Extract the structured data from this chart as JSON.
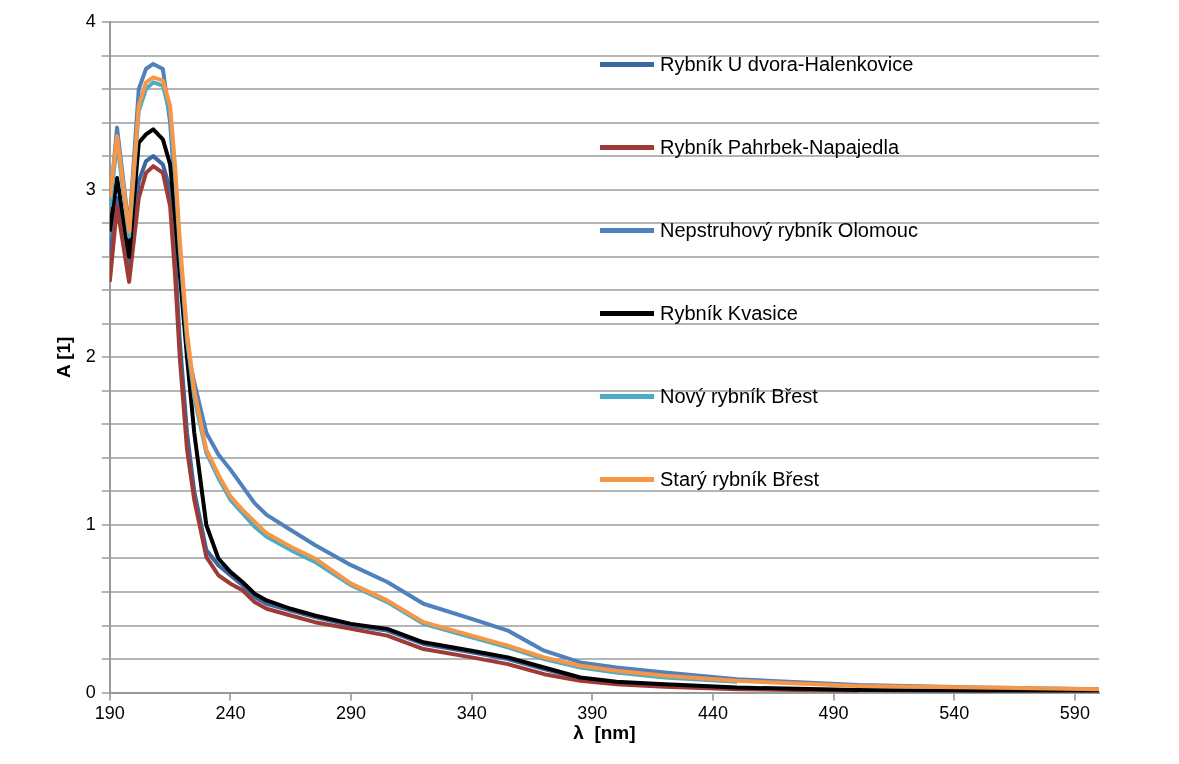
{
  "chart_data": {
    "type": "line",
    "xlabel": "λ  [nm]",
    "ylabel": "A [1]",
    "x": [
      190,
      193,
      198,
      202,
      205,
      208,
      212,
      215,
      217,
      219,
      222,
      225,
      230,
      235,
      240,
      245,
      250,
      255,
      265,
      275,
      290,
      305,
      320,
      340,
      355,
      370,
      385,
      400,
      420,
      450,
      500,
      550,
      600
    ],
    "xlim": [
      190,
      600
    ],
    "xticks": [
      190,
      240,
      290,
      340,
      390,
      440,
      490,
      540,
      590
    ],
    "ylim": [
      0,
      4
    ],
    "yticks": [
      0,
      {
        "value": 0.2,
        "label": null
      },
      {
        "value": 0.4,
        "label": null
      },
      {
        "value": 0.6,
        "label": null
      },
      {
        "value": 0.8,
        "label": null
      },
      1,
      {
        "value": 1.2,
        "label": null
      },
      {
        "value": 1.4,
        "label": null
      },
      {
        "value": 1.6,
        "label": null
      },
      {
        "value": 1.8,
        "label": null
      },
      2,
      {
        "value": 2.2,
        "label": null
      },
      {
        "value": 2.4,
        "label": null
      },
      {
        "value": 2.6,
        "label": null
      },
      {
        "value": 2.8,
        "label": null
      },
      3,
      {
        "value": 3.2,
        "label": null
      },
      {
        "value": 3.4,
        "label": null
      },
      {
        "value": 3.6,
        "label": null
      },
      {
        "value": 3.8,
        "label": null
      },
      4
    ],
    "grid": "y",
    "legend": "top right",
    "marker": "none",
    "line_style": "solid",
    "series": [
      {
        "name": "Rybník U dvora-Halenkovice",
        "color": "#3a67a0",
        "values": [
          2.6,
          2.95,
          2.55,
          3.05,
          3.17,
          3.2,
          3.15,
          3.0,
          2.6,
          2.1,
          1.55,
          1.2,
          0.85,
          0.76,
          0.7,
          0.64,
          0.57,
          0.53,
          0.49,
          0.45,
          0.4,
          0.37,
          0.29,
          0.24,
          0.2,
          0.14,
          0.085,
          0.06,
          null,
          null,
          null,
          null,
          null
        ]
      },
      {
        "name": "Rybník Pahrbek-Napajedla",
        "color": "#9e3b37",
        "values": [
          2.45,
          2.9,
          2.45,
          2.95,
          3.1,
          3.14,
          3.1,
          2.9,
          2.5,
          2.0,
          1.45,
          1.15,
          0.81,
          0.7,
          0.65,
          0.61,
          0.54,
          0.5,
          0.46,
          0.42,
          0.38,
          0.34,
          0.26,
          0.21,
          0.17,
          0.11,
          0.07,
          0.05,
          0.035,
          0.02,
          0.01,
          null,
          null
        ]
      },
      {
        "name": "Nepstruhový rybník Olomouc",
        "color": "#4f81bd",
        "values": [
          2.9,
          3.37,
          2.76,
          3.6,
          3.72,
          3.75,
          3.72,
          3.4,
          3.0,
          2.6,
          2.05,
          1.85,
          1.55,
          1.42,
          1.33,
          1.23,
          1.13,
          1.06,
          0.97,
          0.88,
          0.76,
          0.66,
          0.53,
          0.44,
          0.37,
          0.25,
          0.18,
          0.15,
          0.12,
          0.08,
          0.045,
          0.03,
          0.02
        ]
      },
      {
        "name": "Rybník Kvasice",
        "color": "#000000",
        "values": [
          2.75,
          3.07,
          2.6,
          3.28,
          3.33,
          3.36,
          3.3,
          3.15,
          2.85,
          2.5,
          2.0,
          1.55,
          1.0,
          0.8,
          0.72,
          0.66,
          0.59,
          0.55,
          0.5,
          0.46,
          0.41,
          0.38,
          0.3,
          0.25,
          0.21,
          0.15,
          0.09,
          0.065,
          0.05,
          0.03,
          0.015,
          0.01,
          0.01
        ]
      },
      {
        "name": "Nový rybník Břest",
        "color": "#4bacc6",
        "values": [
          2.9,
          3.28,
          2.72,
          3.47,
          3.6,
          3.64,
          3.62,
          3.45,
          3.1,
          2.65,
          2.1,
          1.76,
          1.43,
          1.28,
          1.15,
          1.07,
          0.99,
          0.93,
          0.85,
          0.78,
          0.64,
          0.54,
          0.41,
          0.33,
          0.27,
          0.2,
          0.15,
          0.12,
          0.09,
          0.065,
          null,
          null,
          null
        ]
      },
      {
        "name": "Starý rybník Břest",
        "color": "#f79646",
        "values": [
          2.95,
          3.32,
          2.75,
          3.5,
          3.64,
          3.67,
          3.65,
          3.5,
          3.15,
          2.7,
          2.15,
          1.8,
          1.45,
          1.3,
          1.17,
          1.09,
          1.02,
          0.95,
          0.87,
          0.8,
          0.65,
          0.55,
          0.42,
          0.34,
          0.28,
          0.21,
          0.16,
          0.13,
          0.1,
          0.07,
          0.04,
          0.03,
          0.02
        ]
      }
    ]
  }
}
